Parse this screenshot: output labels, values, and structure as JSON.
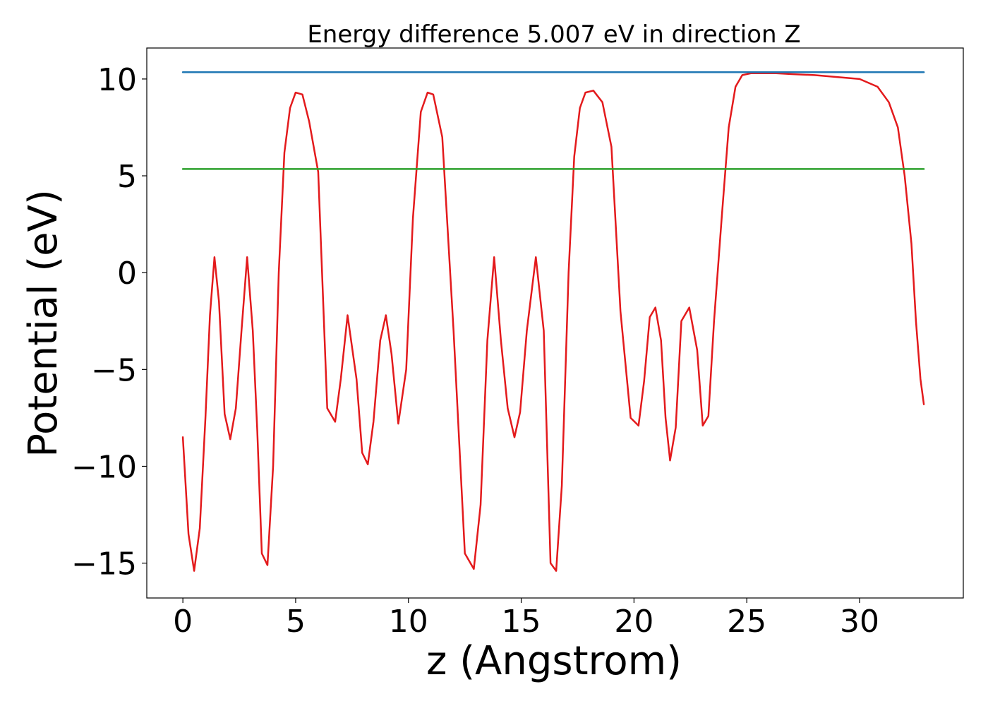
{
  "chart_data": {
    "type": "line",
    "title": "Energy difference 5.007 eV in direction Z",
    "xlabel": "z (Angstrom)",
    "ylabel": "Potential (eV)",
    "xlim": [
      -1.6,
      34.6
    ],
    "ylim": [
      -16.8,
      11.6
    ],
    "x_ticks": [
      0,
      5,
      10,
      15,
      20,
      25,
      30
    ],
    "x_tick_labels": [
      "0",
      "5",
      "10",
      "15",
      "20",
      "25",
      "30"
    ],
    "y_ticks": [
      -15,
      -10,
      -5,
      0,
      5,
      10
    ],
    "y_tick_labels": [
      "−15",
      "−10",
      "−5",
      "0",
      "5",
      "10"
    ],
    "grid": false,
    "legend": "none",
    "colors": {
      "potential": "#e31a1c",
      "vacuum_level": "#1f77b4",
      "reference_level": "#2ca02c"
    },
    "series": [
      {
        "type": "line",
        "x": [
          0,
          0.25,
          0.5,
          0.75,
          1.0,
          1.2,
          1.4,
          1.6,
          1.85,
          2.1,
          2.35,
          2.6,
          2.85,
          3.1,
          3.3,
          3.5,
          3.75,
          4.0,
          4.25,
          4.5,
          4.75,
          5.0,
          5.3,
          5.6,
          6.0,
          6.4,
          6.75,
          7.0,
          7.3,
          7.7,
          7.95,
          8.2,
          8.45,
          8.75,
          9.0,
          9.25,
          9.55,
          9.9,
          10.2,
          10.55,
          10.85,
          11.1,
          11.5,
          12.0,
          12.5,
          12.9,
          13.2,
          13.5,
          13.8,
          14.1,
          14.4,
          14.7,
          14.95,
          15.25,
          15.65,
          16.0,
          16.3,
          16.55,
          16.8,
          17.1,
          17.35,
          17.6,
          17.85,
          18.2,
          18.6,
          19.0,
          19.4,
          19.85,
          20.2,
          20.45,
          20.7,
          20.95,
          21.2,
          21.4,
          21.6,
          21.85,
          22.1,
          22.45,
          22.8,
          23.05,
          23.3,
          23.55,
          23.9,
          24.2,
          24.5,
          24.8,
          25.2,
          25.7,
          26.3,
          27.0,
          28.0,
          29.0,
          30.0,
          30.8,
          31.3,
          31.7,
          32.0,
          32.3,
          32.5,
          32.7,
          32.85
        ],
        "y": [
          -8.5,
          -13.5,
          -15.4,
          -13.2,
          -7.5,
          -2.2,
          0.8,
          -1.5,
          -7.3,
          -8.6,
          -7.0,
          -3.0,
          0.8,
          -3.0,
          -8.2,
          -14.5,
          -15.1,
          -10.0,
          0.0,
          6.2,
          8.5,
          9.3,
          9.2,
          7.8,
          5.2,
          -7.0,
          -7.7,
          -5.5,
          -2.2,
          -5.5,
          -9.3,
          -9.9,
          -7.7,
          -3.5,
          -2.2,
          -4.2,
          -7.8,
          -5.0,
          2.8,
          8.3,
          9.3,
          9.2,
          7.0,
          -3.0,
          -14.5,
          -15.3,
          -12.0,
          -3.5,
          0.8,
          -3.5,
          -7.0,
          -8.5,
          -7.2,
          -3.0,
          0.8,
          -3.0,
          -15.0,
          -15.4,
          -11.0,
          0.0,
          6.0,
          8.5,
          9.3,
          9.4,
          8.8,
          6.5,
          -2.0,
          -7.5,
          -7.9,
          -5.6,
          -2.3,
          -1.8,
          -3.5,
          -7.5,
          -9.7,
          -8.0,
          -2.5,
          -1.8,
          -4.0,
          -7.9,
          -7.4,
          -2.5,
          3.0,
          7.5,
          9.6,
          10.2,
          10.3,
          10.3,
          10.3,
          10.25,
          10.2,
          10.1,
          10.0,
          9.6,
          8.8,
          7.5,
          5.0,
          1.5,
          -2.5,
          -5.5,
          -6.8
        ],
        "color": "#e31a1c"
      },
      {
        "type": "hline",
        "x": [
          0,
          32.85
        ],
        "y": [
          10.35,
          10.35
        ],
        "color": "#1f77b4"
      },
      {
        "type": "hline",
        "x": [
          0,
          32.85
        ],
        "y": [
          5.35,
          5.35
        ],
        "color": "#2ca02c"
      }
    ]
  }
}
